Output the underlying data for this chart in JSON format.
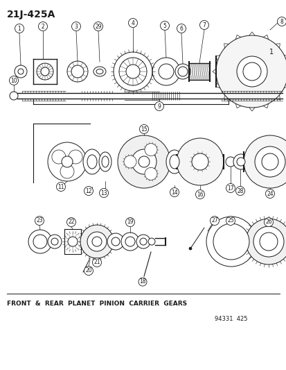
{
  "title": "21J-425A",
  "background_color": "#ffffff",
  "line_color": "#1a1a1a",
  "footer_text": "FRONT  &  REAR  PLANET  PINION  CARRIER  GEARS",
  "catalog_number": "94331  425",
  "fig_width": 4.14,
  "fig_height": 5.33,
  "dpi": 100
}
